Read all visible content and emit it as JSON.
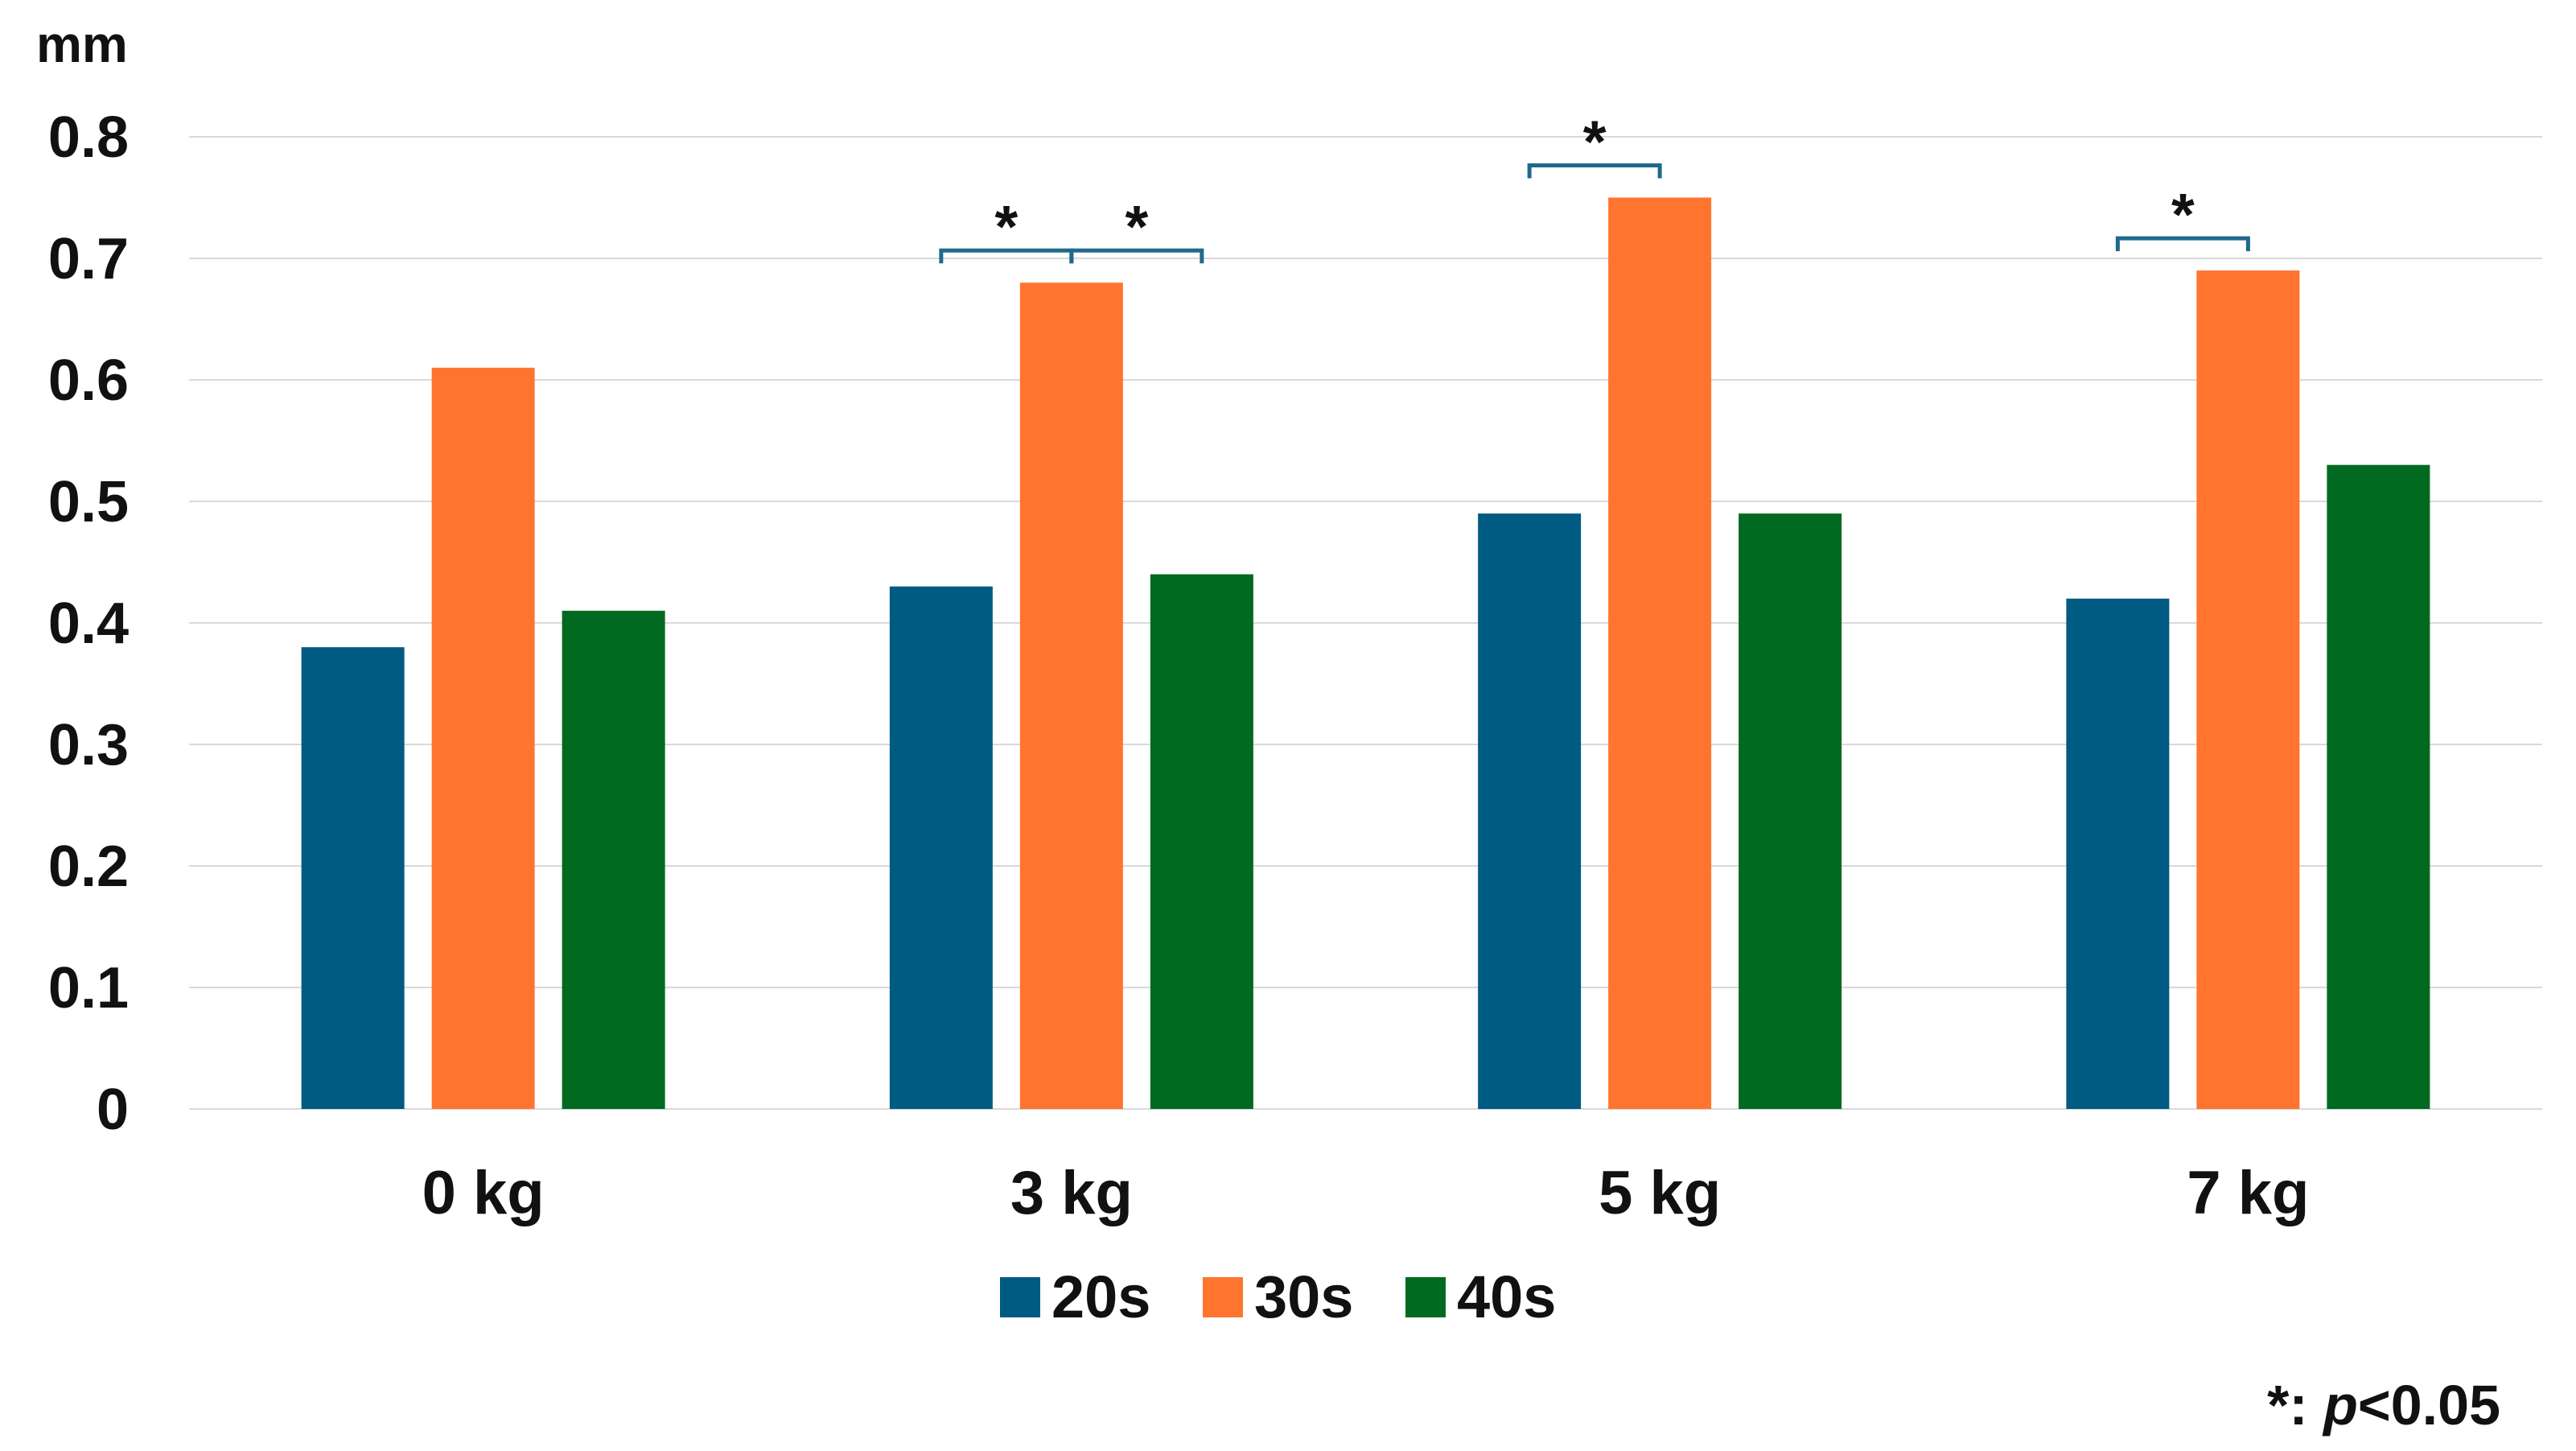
{
  "chart_data": {
    "type": "bar",
    "categories": [
      "0 kg",
      "3 kg",
      "5 kg",
      "7 kg"
    ],
    "series": [
      {
        "name": "20s",
        "color": "#005b82",
        "values": [
          0.38,
          0.43,
          0.49,
          0.42
        ]
      },
      {
        "name": "30s",
        "color": "#ff7530",
        "values": [
          0.61,
          0.68,
          0.75,
          0.69
        ]
      },
      {
        "name": "40s",
        "color": "#006a20",
        "values": [
          0.41,
          0.44,
          0.49,
          0.53
        ]
      }
    ],
    "ylabel": "mm",
    "ylim": [
      0,
      0.8
    ],
    "yticks": [
      "0",
      "0.1",
      "0.2",
      "0.3",
      "0.4",
      "0.5",
      "0.6",
      "0.7",
      "0.8"
    ],
    "grid": true,
    "legend_position": "bottom",
    "significance": [
      {
        "category": 1,
        "from_series": 0,
        "to_series": 1,
        "label": "*"
      },
      {
        "category": 1,
        "from_series": 1,
        "to_series": 2,
        "label": "*"
      },
      {
        "category": 2,
        "from_series": 0,
        "to_series": 1,
        "label": "*"
      },
      {
        "category": 3,
        "from_series": 0,
        "to_series": 1,
        "label": "*"
      }
    ],
    "note": {
      "prefix": "*: ",
      "italic": "p",
      "suffix": "<0.05"
    }
  }
}
